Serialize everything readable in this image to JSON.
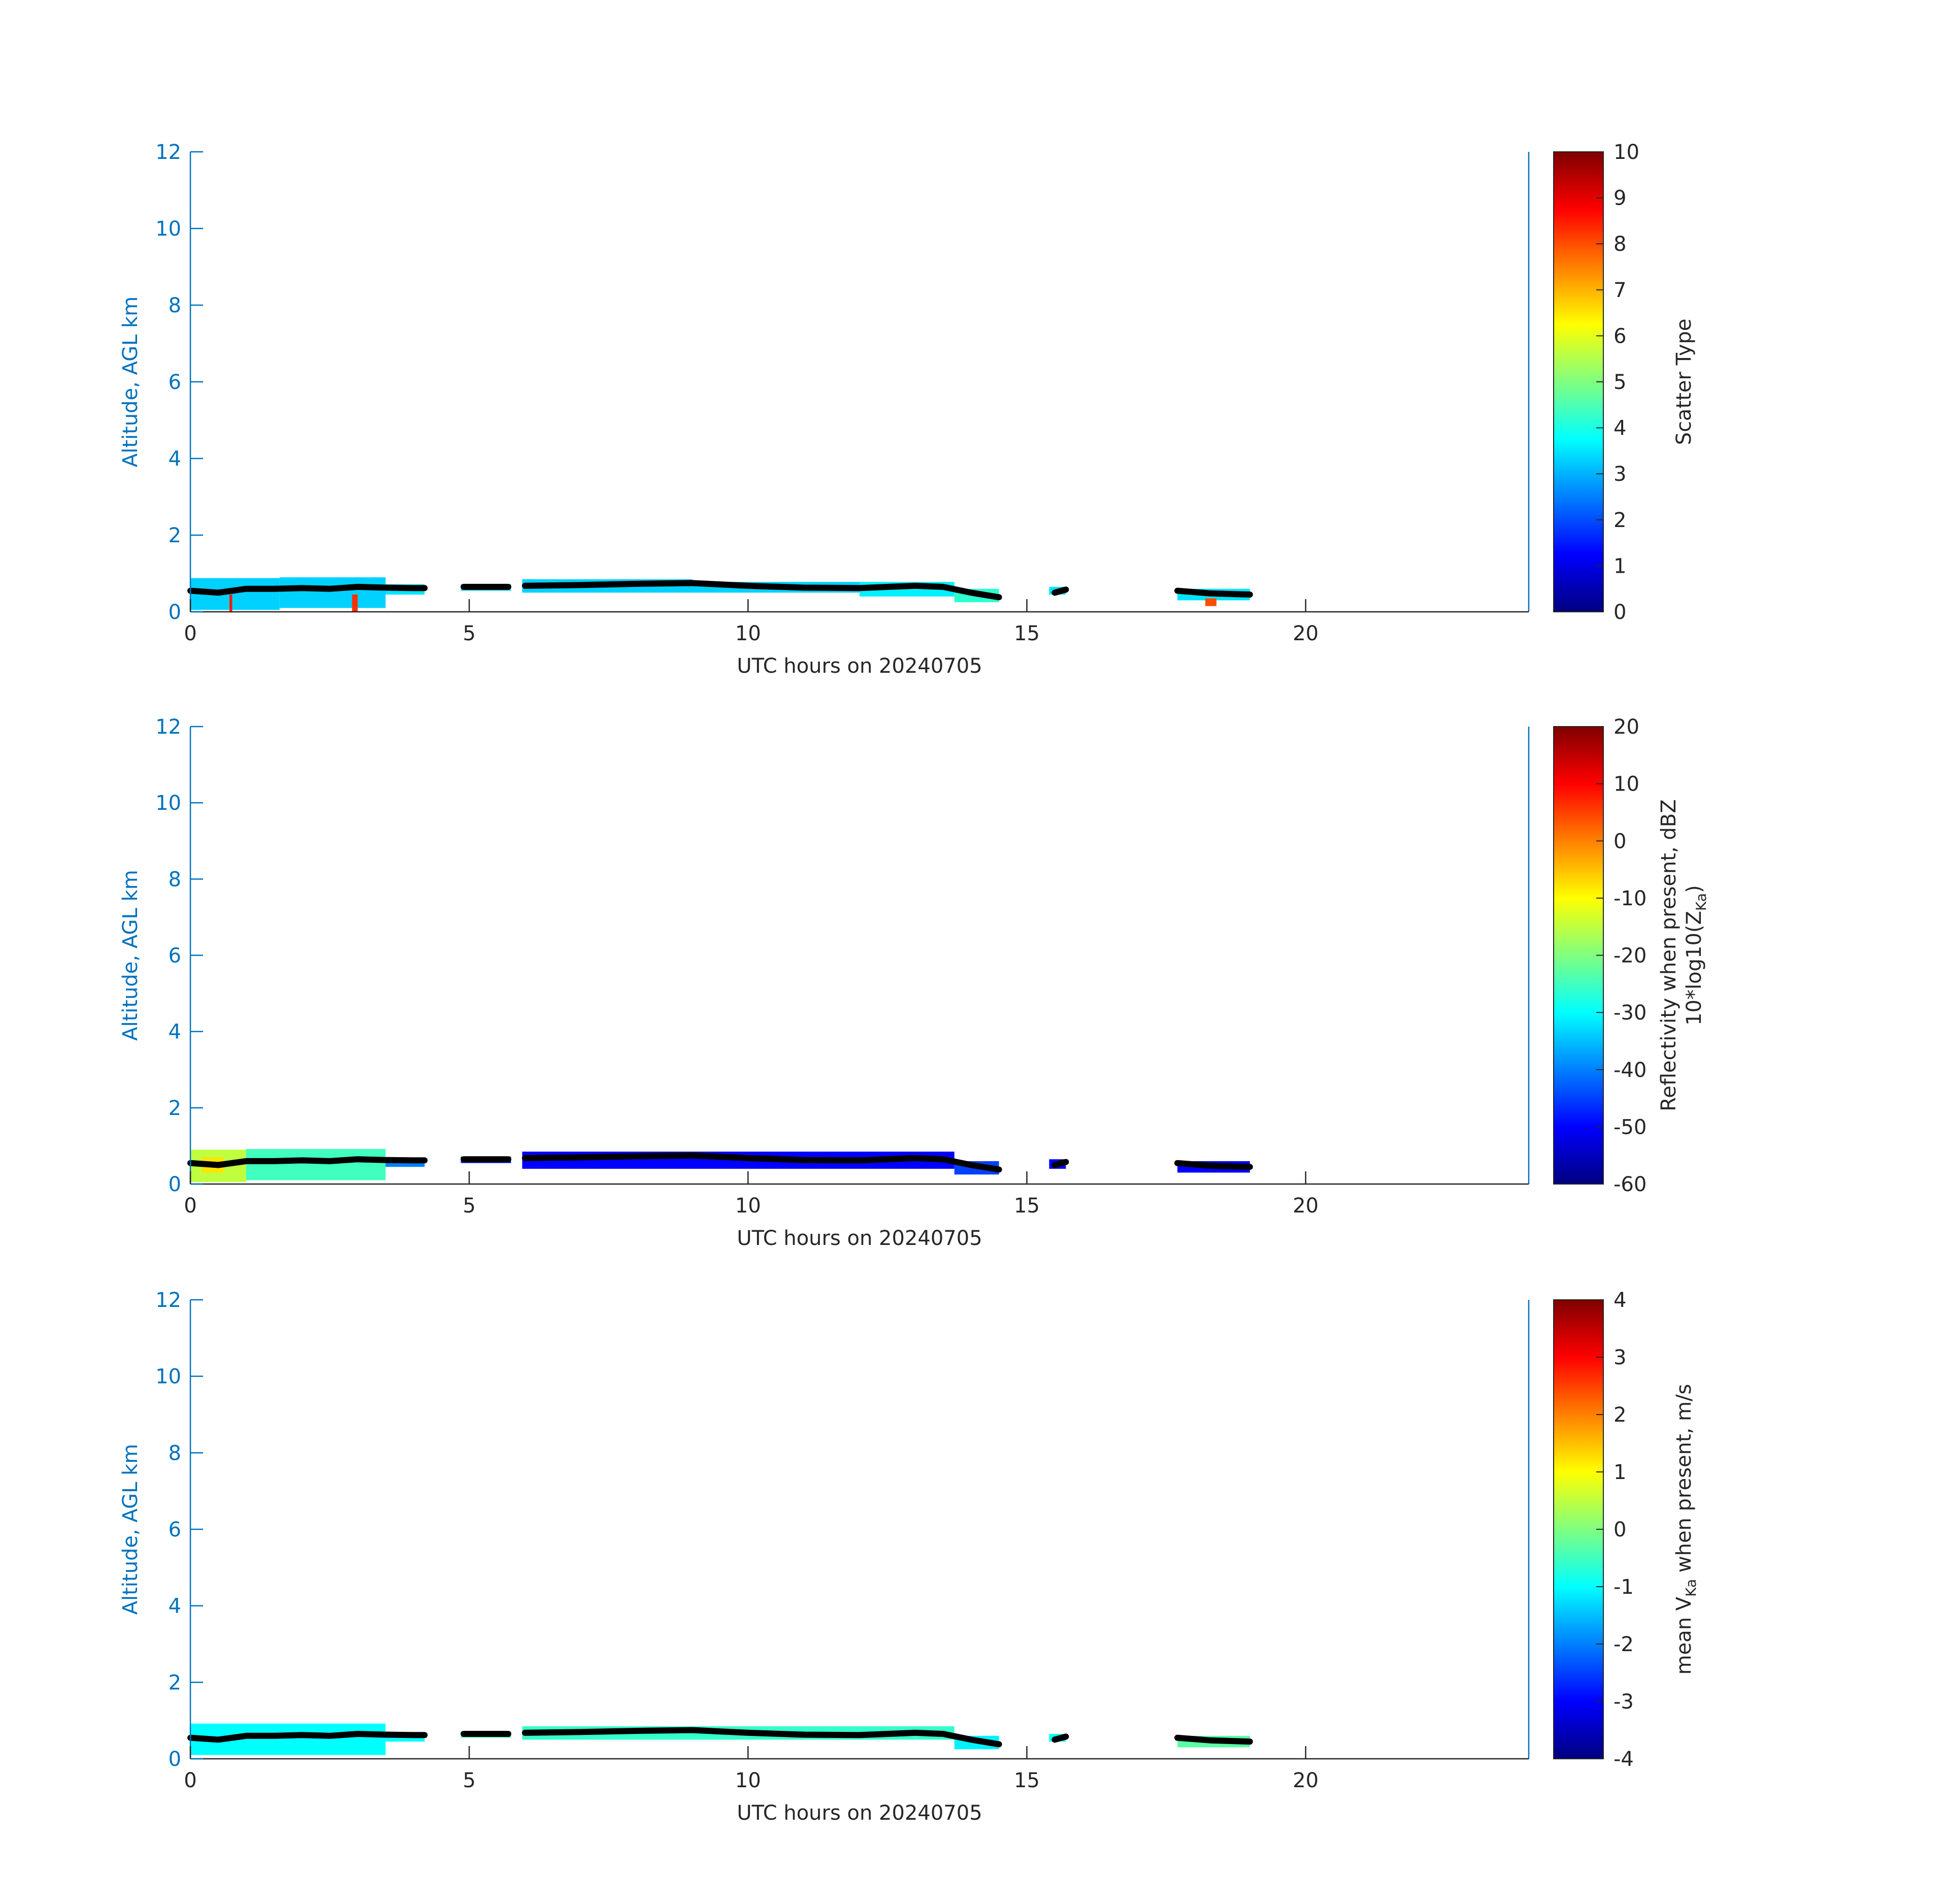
{
  "chart_data": [
    {
      "type": "profile",
      "x_label": "UTC hours on 20240705",
      "y_label": "Altitude, AGL km",
      "xlim": [
        0,
        24
      ],
      "xticks": [
        0,
        5,
        10,
        15,
        20
      ],
      "ylim": [
        0,
        12
      ],
      "yticks": [
        0,
        2,
        4,
        6,
        8,
        10,
        12
      ],
      "colorbar_label": {
        "text": "Scatter Type"
      },
      "clim": [
        0,
        10
      ],
      "cticks": [
        0,
        1,
        2,
        3,
        4,
        5,
        6,
        7,
        8,
        9,
        10
      ],
      "echoes": {
        "x_start": [
          0,
          1.6,
          3.5,
          4.85,
          5.95,
          9,
          12,
          13.7,
          15.4,
          17.7,
          0.7,
          2.9,
          18.2
        ],
        "x_end": [
          1.6,
          3.5,
          4.2,
          5.75,
          9,
          12,
          13.7,
          14.5,
          15.7,
          19,
          0.75,
          3.0,
          18.4
        ],
        "bottom": [
          0.05,
          0.1,
          0.45,
          0.55,
          0.5,
          0.5,
          0.4,
          0.25,
          0.45,
          0.3,
          0,
          0,
          0.15
        ],
        "top": [
          0.88,
          0.9,
          0.72,
          0.72,
          0.85,
          0.78,
          0.78,
          0.6,
          0.65,
          0.6,
          0.45,
          0.45,
          0.35
        ],
        "values": [
          3.3,
          3.3,
          3.5,
          3.5,
          3.3,
          3.3,
          3.6,
          4.2,
          3.5,
          3.5,
          8.5,
          8.3,
          8
        ]
      },
      "cloud_base": {
        "x": [
          0,
          0.5,
          1,
          1.5,
          2,
          2.5,
          3,
          3.5,
          4,
          4.2,
          null,
          4.9,
          5.2,
          5.5,
          5.7,
          null,
          6,
          7,
          8,
          9,
          10,
          11,
          12,
          13,
          13.5,
          14,
          14.5,
          null,
          15.5,
          15.7,
          null,
          17.7,
          18.3,
          19
        ],
        "y": [
          0.55,
          0.5,
          0.6,
          0.6,
          0.62,
          0.6,
          0.65,
          0.63,
          0.62,
          0.62,
          null,
          0.65,
          0.65,
          0.65,
          0.65,
          null,
          0.68,
          0.7,
          0.73,
          0.75,
          0.68,
          0.63,
          0.62,
          0.68,
          0.65,
          0.5,
          0.38,
          null,
          0.5,
          0.58,
          null,
          0.55,
          0.48,
          0.45
        ]
      }
    },
    {
      "type": "profile",
      "x_label": "UTC hours on 20240705",
      "y_label": "Altitude, AGL km",
      "xlim": [
        0,
        24
      ],
      "xticks": [
        0,
        5,
        10,
        15,
        20
      ],
      "ylim": [
        0,
        12
      ],
      "yticks": [
        0,
        2,
        4,
        6,
        8,
        10,
        12
      ],
      "colorbar_label": {
        "text": "Reflectivity when present, dBZ",
        "text2": "10*log10(Z",
        "sub": "Ka",
        "tail": ")"
      },
      "clim": [
        -60,
        20
      ],
      "cticks": [
        -60,
        -50,
        -40,
        -30,
        -20,
        -10,
        0,
        10,
        20
      ],
      "echoes": {
        "x_start": [
          0,
          1.0,
          3.5,
          4.85,
          5.95,
          13.7,
          15.4,
          17.7,
          0.2
        ],
        "x_end": [
          1.0,
          3.5,
          4.2,
          5.75,
          13.7,
          14.5,
          15.7,
          19,
          0.6
        ],
        "bottom": [
          0.05,
          0.1,
          0.45,
          0.55,
          0.4,
          0.25,
          0.4,
          0.3,
          0.3
        ],
        "top": [
          0.9,
          0.92,
          0.7,
          0.72,
          0.85,
          0.6,
          0.65,
          0.6,
          0.7
        ],
        "values": [
          -15,
          -25,
          -40,
          -48,
          -50,
          -45,
          -50,
          -50,
          -8
        ]
      },
      "cloud_base": {
        "x": [
          0,
          0.5,
          1,
          1.5,
          2,
          2.5,
          3,
          3.5,
          4,
          4.2,
          null,
          4.9,
          5.2,
          5.5,
          5.7,
          null,
          6,
          7,
          8,
          9,
          10,
          11,
          12,
          13,
          13.5,
          14,
          14.5,
          null,
          15.5,
          15.7,
          null,
          17.7,
          18.3,
          19
        ],
        "y": [
          0.55,
          0.5,
          0.6,
          0.6,
          0.62,
          0.6,
          0.65,
          0.63,
          0.62,
          0.62,
          null,
          0.65,
          0.65,
          0.65,
          0.65,
          null,
          0.68,
          0.7,
          0.73,
          0.75,
          0.68,
          0.63,
          0.62,
          0.68,
          0.65,
          0.5,
          0.38,
          null,
          0.5,
          0.58,
          null,
          0.55,
          0.48,
          0.45
        ]
      }
    },
    {
      "type": "profile",
      "x_label": "UTC hours on 20240705",
      "y_label": "Altitude, AGL km",
      "xlim": [
        0,
        24
      ],
      "xticks": [
        0,
        5,
        10,
        15,
        20
      ],
      "ylim": [
        0,
        12
      ],
      "yticks": [
        0,
        2,
        4,
        6,
        8,
        10,
        12
      ],
      "colorbar_label": {
        "text": "mean V",
        "sub": "Ka",
        "tail": " when present, m/s"
      },
      "clim": [
        -4,
        4
      ],
      "cticks": [
        -4,
        -3,
        -2,
        -1,
        0,
        1,
        2,
        3,
        4
      ],
      "echoes": {
        "x_start": [
          0,
          3.5,
          4.85,
          5.95,
          13.7,
          15.4,
          17.7
        ],
        "x_end": [
          3.5,
          4.2,
          5.75,
          13.7,
          14.5,
          15.7,
          19
        ],
        "bottom": [
          0.1,
          0.45,
          0.55,
          0.5,
          0.25,
          0.45,
          0.3
        ],
        "top": [
          0.92,
          0.7,
          0.72,
          0.85,
          0.6,
          0.65,
          0.6
        ],
        "values": [
          -1,
          -1,
          -0.5,
          -0.6,
          -1.1,
          -1,
          -0.3
        ]
      },
      "cloud_base": {
        "x": [
          0,
          0.5,
          1,
          1.5,
          2,
          2.5,
          3,
          3.5,
          4,
          4.2,
          null,
          4.9,
          5.2,
          5.5,
          5.7,
          null,
          6,
          7,
          8,
          9,
          10,
          11,
          12,
          13,
          13.5,
          14,
          14.5,
          null,
          15.5,
          15.7,
          null,
          17.7,
          18.3,
          19
        ],
        "y": [
          0.55,
          0.5,
          0.6,
          0.6,
          0.62,
          0.6,
          0.65,
          0.63,
          0.62,
          0.62,
          null,
          0.65,
          0.65,
          0.65,
          0.65,
          null,
          0.68,
          0.7,
          0.73,
          0.75,
          0.68,
          0.63,
          0.62,
          0.68,
          0.65,
          0.5,
          0.38,
          null,
          0.5,
          0.58,
          null,
          0.55,
          0.48,
          0.45
        ]
      }
    }
  ]
}
